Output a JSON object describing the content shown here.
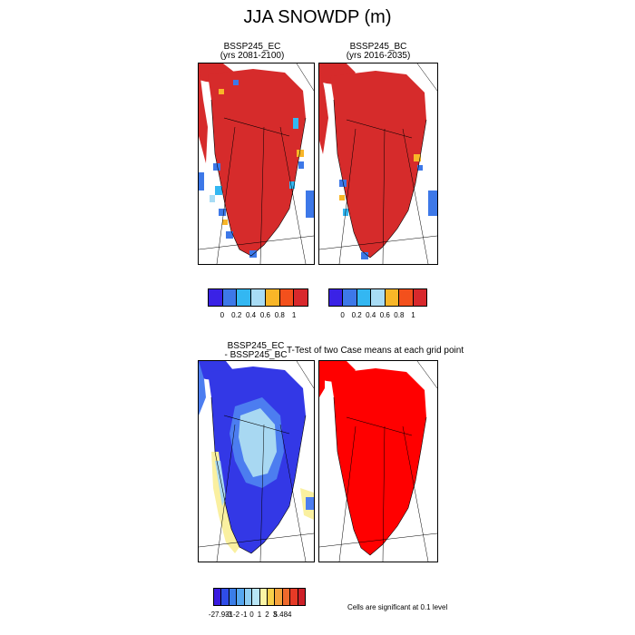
{
  "figure": {
    "title": "JJA SNOWDP (m)",
    "note": "Cells are significant at 0.1 level"
  },
  "panels": {
    "top_left": {
      "title_line1": "BSSP245_EC",
      "title_line2": "(yrs 2081-2100)"
    },
    "top_right": {
      "title_line1": "BSSP245_BC",
      "title_line2": "(yrs 2016-2035)"
    },
    "bottom_left": {
      "title_line1": "BSSP245_EC",
      "title_line2": "- BSSP245_BC"
    },
    "bottom_right": {
      "title": "T-Test of two Case means at each grid point"
    }
  },
  "colorbars": {
    "absolute": {
      "colors": [
        "#3a22e6",
        "#3d78e8",
        "#33b7f2",
        "#a8dcf5",
        "#f8b628",
        "#f3501c",
        "#d8282c"
      ],
      "labels": [
        "0",
        "0.2",
        "0.4",
        "0.6",
        "0.8",
        "1"
      ]
    },
    "difference": {
      "colors": [
        "#3a1be0",
        "#2f4ce8",
        "#3a7de8",
        "#55a6ef",
        "#8ecdf2",
        "#b8e5f6",
        "#fbf5a6",
        "#f8d04a",
        "#f5a23c",
        "#ef6a2c",
        "#e63a26",
        "#cd2028"
      ],
      "labels": [
        "-27.931",
        "-3",
        "-2",
        "-1",
        "0",
        "1",
        "2",
        "3",
        "5.484"
      ]
    }
  },
  "colors": {
    "snow_red": "#d62b2b",
    "significant_red": "#ff0000",
    "diff_blue_dark": "#3338e6",
    "diff_blue_mid": "#4c7df0",
    "diff_blue_light": "#a8d8f2",
    "diff_yellow": "#faf0a0"
  }
}
